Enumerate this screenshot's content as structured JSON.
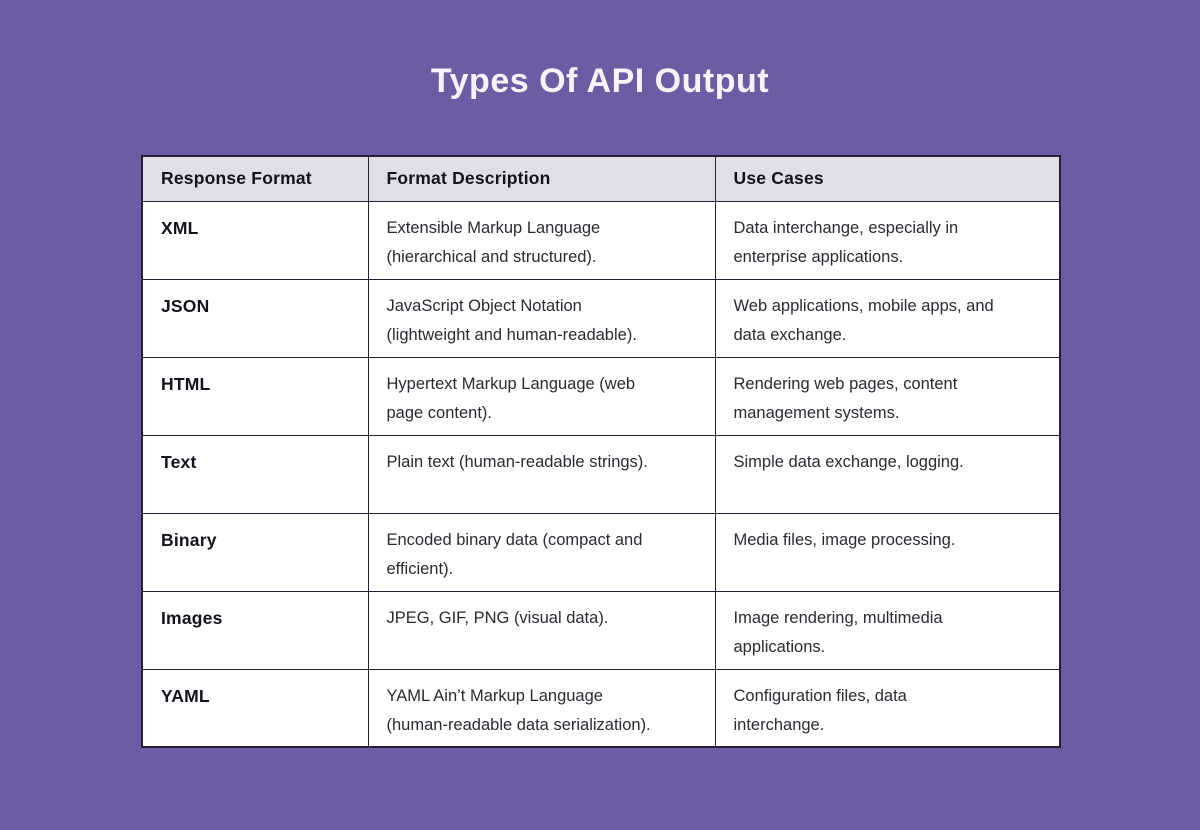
{
  "page": {
    "title": "Types Of API Output"
  },
  "colors": {
    "bg": "#6C5CA4",
    "header-bg": "#E1DEEA",
    "border": "#241F33",
    "cell-bg": "#FFFFFF",
    "title-color": "#F6F4F9",
    "heading-text": "#14121F",
    "body-text": "#2B2A33"
  },
  "chart_data": {
    "type": "table",
    "title": "Types Of API Output",
    "columns": [
      "Response Format",
      "Format Description",
      "Use Cases"
    ],
    "rows": [
      [
        "XML",
        "Extensible Markup Language\n(hierarchical and structured).",
        "Data interchange, especially in\nenterprise applications."
      ],
      [
        "JSON",
        "JavaScript Object Notation\n(lightweight and human-readable).",
        "Web applications, mobile apps, and\ndata exchange."
      ],
      [
        "HTML",
        "Hypertext Markup Language (web\npage content).",
        "Rendering web pages, content\nmanagement systems."
      ],
      [
        "Text",
        "Plain text (human-readable strings).",
        "Simple data exchange, logging."
      ],
      [
        "Binary",
        "Encoded binary data (compact and\nefficient).",
        "Media files, image processing."
      ],
      [
        "Images",
        "JPEG, GIF, PNG (visual data).",
        "Image rendering, multimedia\napplications."
      ],
      [
        "YAML",
        "YAML Ain’t Markup Language\n(human-readable data serialization).",
        "Configuration files, data\ninterchange."
      ]
    ],
    "layout": "3-column comparison table, header row shaded lavender, body rows white, dark grid borders"
  }
}
